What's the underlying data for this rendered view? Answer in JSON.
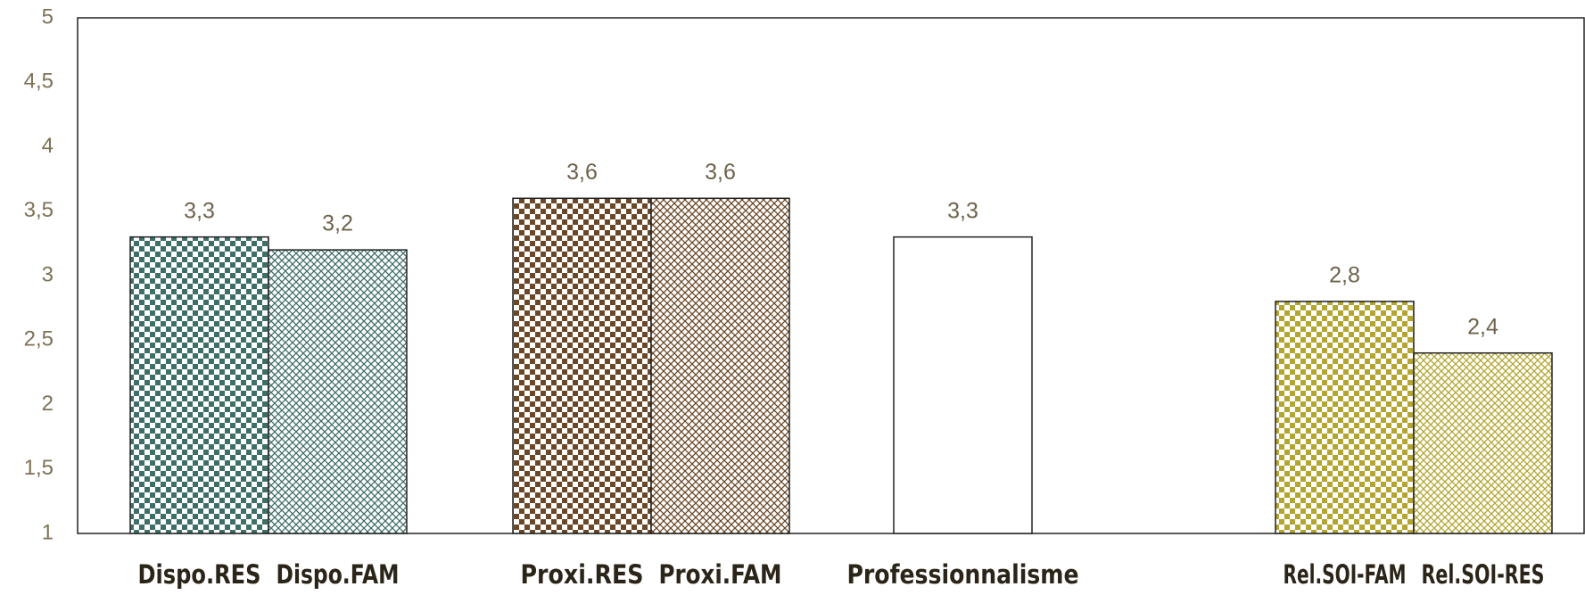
{
  "chart_data": {
    "type": "bar",
    "categories": [
      "Dispo.RES",
      "Dispo.FAM",
      "Proxi.RES",
      "Proxi.FAM",
      "Professionnalisme",
      "Rel.SOI-FAM",
      "Rel.SOI-RES"
    ],
    "values": [
      3.3,
      3.2,
      3.6,
      3.6,
      3.3,
      2.8,
      2.4
    ],
    "value_labels": [
      "3,3",
      "3,2",
      "3,6",
      "3,6",
      "3,3",
      "2,8",
      "2,4"
    ],
    "colors": [
      "#3e6e68",
      "#3e6e68",
      "#6a4726",
      "#6a4726",
      "#ffffff",
      "#b3a52f",
      "#b3a52f"
    ],
    "patterns": [
      "checker",
      "cross",
      "checker",
      "cross",
      "solid",
      "checker",
      "cross"
    ],
    "ylim": [
      1,
      5
    ],
    "yticks": [
      1,
      {
        "value": 1.5,
        "label": "1,5"
      },
      2,
      {
        "value": 2.5,
        "label": "2,5"
      },
      3,
      {
        "value": 3.5,
        "label": "3,5"
      },
      4,
      {
        "value": 4.5,
        "label": "4,5"
      },
      5
    ]
  }
}
